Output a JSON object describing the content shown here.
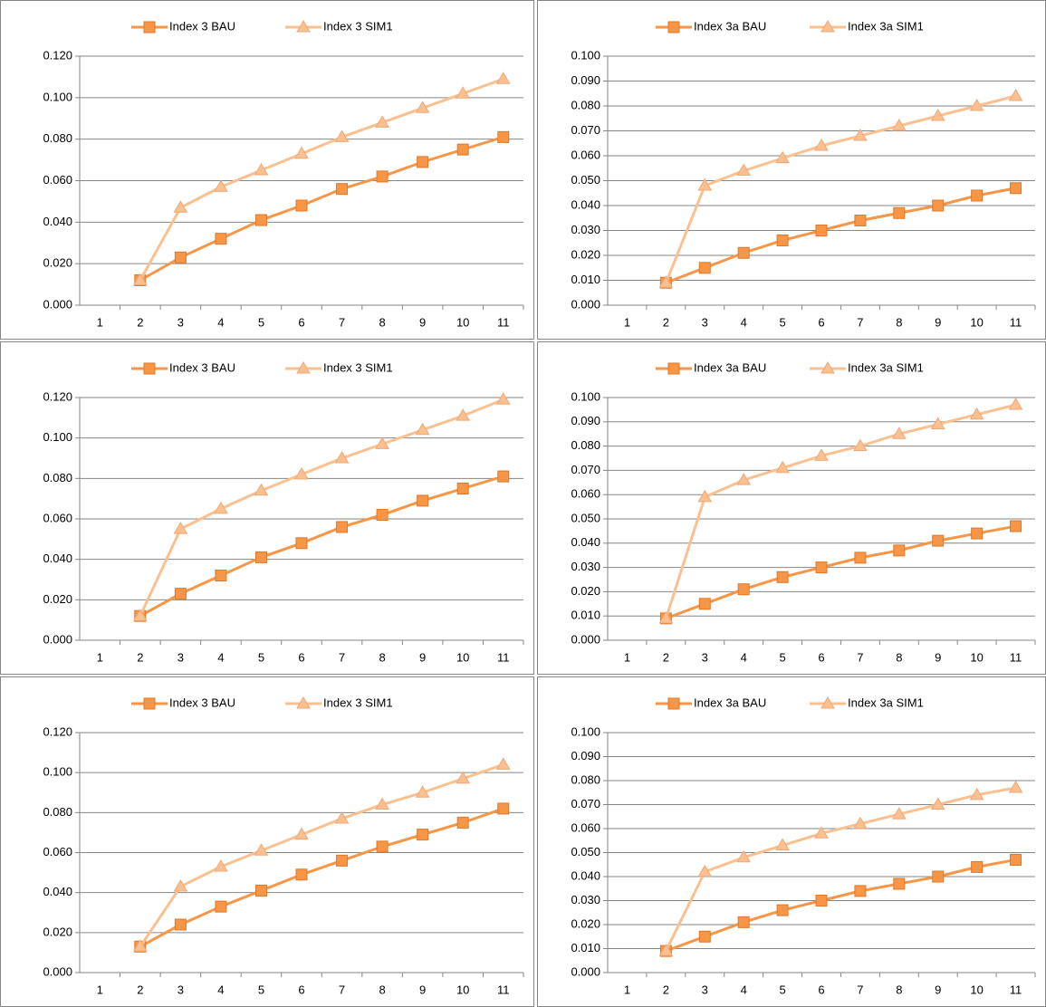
{
  "chart_data": [
    {
      "type": "line",
      "categories": [
        "1",
        "2",
        "3",
        "4",
        "5",
        "6",
        "7",
        "8",
        "9",
        "10",
        "11"
      ],
      "ylim": [
        0,
        0.12
      ],
      "yticks": [
        {
          "value": 0,
          "label": "0.000"
        },
        {
          "value": 0.02,
          "label": "0.020"
        },
        {
          "value": 0.04,
          "label": "0.040"
        },
        {
          "value": 0.06,
          "label": "0.060"
        },
        {
          "value": 0.08,
          "label": "0.080"
        },
        {
          "value": 0.1,
          "label": "0.100"
        },
        {
          "value": 0.12,
          "label": "0.120"
        }
      ],
      "grid": true,
      "series": [
        {
          "name": "Index 3 BAU",
          "color": "#f79646",
          "marker": "square",
          "values": [
            null,
            0.012,
            0.023,
            0.032,
            0.041,
            0.048,
            0.056,
            0.062,
            0.069,
            0.075,
            0.081
          ]
        },
        {
          "name": "Index 3 SIM1",
          "color": "#fac090",
          "marker": "triangle",
          "values": [
            null,
            0.012,
            0.047,
            0.057,
            0.065,
            0.073,
            0.081,
            0.088,
            0.095,
            0.102,
            0.109
          ]
        }
      ]
    },
    {
      "type": "line",
      "categories": [
        "1",
        "2",
        "3",
        "4",
        "5",
        "6",
        "7",
        "8",
        "9",
        "10",
        "11"
      ],
      "ylim": [
        0,
        0.1
      ],
      "yticks": [
        {
          "value": 0,
          "label": "0.000"
        },
        {
          "value": 0.01,
          "label": "0.010"
        },
        {
          "value": 0.02,
          "label": "0.020"
        },
        {
          "value": 0.03,
          "label": "0.030"
        },
        {
          "value": 0.04,
          "label": "0.040"
        },
        {
          "value": 0.05,
          "label": "0.050"
        },
        {
          "value": 0.06,
          "label": "0.060"
        },
        {
          "value": 0.07,
          "label": "0.070"
        },
        {
          "value": 0.08,
          "label": "0.080"
        },
        {
          "value": 0.09,
          "label": "0.090"
        },
        {
          "value": 0.1,
          "label": "0.100"
        }
      ],
      "grid": true,
      "series": [
        {
          "name": "Index 3a BAU",
          "color": "#f79646",
          "marker": "square",
          "values": [
            null,
            0.009,
            0.015,
            0.021,
            0.026,
            0.03,
            0.034,
            0.037,
            0.04,
            0.044,
            0.047
          ]
        },
        {
          "name": "Index 3a SIM1",
          "color": "#fac090",
          "marker": "triangle",
          "values": [
            null,
            0.009,
            0.048,
            0.054,
            0.059,
            0.064,
            0.068,
            0.072,
            0.076,
            0.08,
            0.084
          ]
        }
      ]
    },
    {
      "type": "line",
      "categories": [
        "1",
        "2",
        "3",
        "4",
        "5",
        "6",
        "7",
        "8",
        "9",
        "10",
        "11"
      ],
      "ylim": [
        0,
        0.12
      ],
      "yticks": [
        {
          "value": 0,
          "label": "0.000"
        },
        {
          "value": 0.02,
          "label": "0.020"
        },
        {
          "value": 0.04,
          "label": "0.040"
        },
        {
          "value": 0.06,
          "label": "0.060"
        },
        {
          "value": 0.08,
          "label": "0.080"
        },
        {
          "value": 0.1,
          "label": "0.100"
        },
        {
          "value": 0.12,
          "label": "0.120"
        }
      ],
      "grid": true,
      "series": [
        {
          "name": "Index 3 BAU",
          "color": "#f79646",
          "marker": "square",
          "values": [
            null,
            0.012,
            0.023,
            0.032,
            0.041,
            0.048,
            0.056,
            0.062,
            0.069,
            0.075,
            0.081
          ]
        },
        {
          "name": "Index 3 SIM1",
          "color": "#fac090",
          "marker": "triangle",
          "values": [
            null,
            0.012,
            0.055,
            0.065,
            0.074,
            0.082,
            0.09,
            0.097,
            0.104,
            0.111,
            0.119
          ]
        }
      ]
    },
    {
      "type": "line",
      "categories": [
        "1",
        "2",
        "3",
        "4",
        "5",
        "6",
        "7",
        "8",
        "9",
        "10",
        "11"
      ],
      "ylim": [
        0,
        0.1
      ],
      "yticks": [
        {
          "value": 0,
          "label": "0.000"
        },
        {
          "value": 0.01,
          "label": "0.010"
        },
        {
          "value": 0.02,
          "label": "0.020"
        },
        {
          "value": 0.03,
          "label": "0.030"
        },
        {
          "value": 0.04,
          "label": "0.040"
        },
        {
          "value": 0.05,
          "label": "0.050"
        },
        {
          "value": 0.06,
          "label": "0.060"
        },
        {
          "value": 0.07,
          "label": "0.070"
        },
        {
          "value": 0.08,
          "label": "0.080"
        },
        {
          "value": 0.09,
          "label": "0.090"
        },
        {
          "value": 0.1,
          "label": "0.100"
        }
      ],
      "grid": true,
      "series": [
        {
          "name": "Index 3a BAU",
          "color": "#f79646",
          "marker": "square",
          "values": [
            null,
            0.009,
            0.015,
            0.021,
            0.026,
            0.03,
            0.034,
            0.037,
            0.041,
            0.044,
            0.047
          ]
        },
        {
          "name": "Index 3a SIM1",
          "color": "#fac090",
          "marker": "triangle",
          "values": [
            null,
            0.009,
            0.059,
            0.066,
            0.071,
            0.076,
            0.08,
            0.085,
            0.089,
            0.093,
            0.097
          ]
        }
      ]
    },
    {
      "type": "line",
      "categories": [
        "1",
        "2",
        "3",
        "4",
        "5",
        "6",
        "7",
        "8",
        "9",
        "10",
        "11"
      ],
      "ylim": [
        0,
        0.12
      ],
      "yticks": [
        {
          "value": 0,
          "label": "0.000"
        },
        {
          "value": 0.02,
          "label": "0.020"
        },
        {
          "value": 0.04,
          "label": "0.040"
        },
        {
          "value": 0.06,
          "label": "0.060"
        },
        {
          "value": 0.08,
          "label": "0.080"
        },
        {
          "value": 0.1,
          "label": "0.100"
        },
        {
          "value": 0.12,
          "label": "0.120"
        }
      ],
      "grid": true,
      "series": [
        {
          "name": "Index 3 BAU",
          "color": "#f79646",
          "marker": "square",
          "values": [
            null,
            0.013,
            0.024,
            0.033,
            0.041,
            0.049,
            0.056,
            0.063,
            0.069,
            0.075,
            0.082
          ]
        },
        {
          "name": "Index 3 SIM1",
          "color": "#fac090",
          "marker": "triangle",
          "values": [
            null,
            0.013,
            0.043,
            0.053,
            0.061,
            0.069,
            0.077,
            0.084,
            0.09,
            0.097,
            0.104
          ]
        }
      ]
    },
    {
      "type": "line",
      "categories": [
        "1",
        "2",
        "3",
        "4",
        "5",
        "6",
        "7",
        "8",
        "9",
        "10",
        "11"
      ],
      "ylim": [
        0,
        0.1
      ],
      "yticks": [
        {
          "value": 0,
          "label": "0.000"
        },
        {
          "value": 0.01,
          "label": "0.010"
        },
        {
          "value": 0.02,
          "label": "0.020"
        },
        {
          "value": 0.03,
          "label": "0.030"
        },
        {
          "value": 0.04,
          "label": "0.040"
        },
        {
          "value": 0.05,
          "label": "0.050"
        },
        {
          "value": 0.06,
          "label": "0.060"
        },
        {
          "value": 0.07,
          "label": "0.070"
        },
        {
          "value": 0.08,
          "label": "0.080"
        },
        {
          "value": 0.09,
          "label": "0.090"
        },
        {
          "value": 0.1,
          "label": "0.100"
        }
      ],
      "grid": true,
      "series": [
        {
          "name": "Index 3a BAU",
          "color": "#f79646",
          "marker": "square",
          "values": [
            null,
            0.009,
            0.015,
            0.021,
            0.026,
            0.03,
            0.034,
            0.037,
            0.04,
            0.044,
            0.047
          ]
        },
        {
          "name": "Index 3a SIM1",
          "color": "#fac090",
          "marker": "triangle",
          "values": [
            null,
            0.009,
            0.042,
            0.048,
            0.053,
            0.058,
            0.062,
            0.066,
            0.07,
            0.074,
            0.077
          ]
        }
      ]
    }
  ]
}
